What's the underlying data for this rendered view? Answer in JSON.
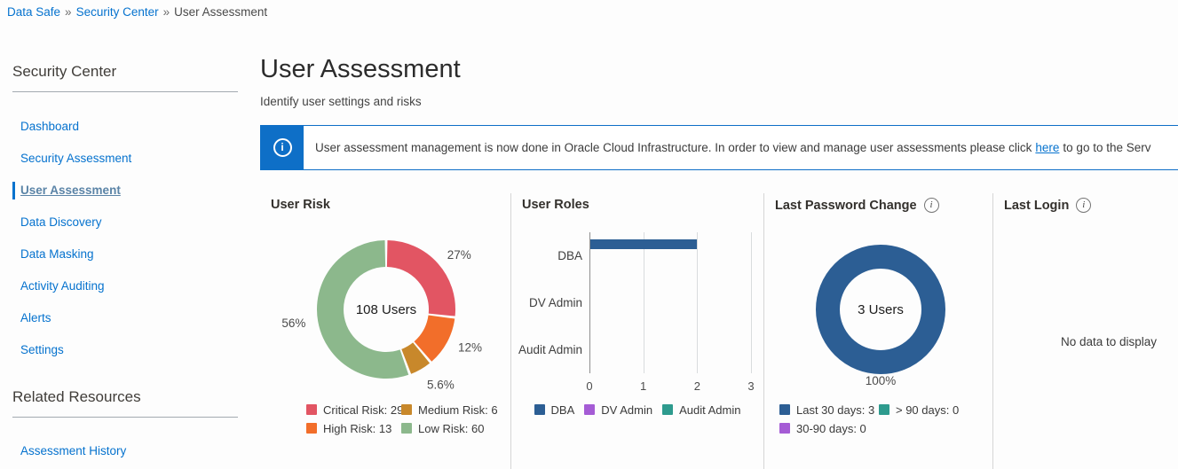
{
  "breadcrumb": {
    "separator": "»",
    "items": [
      {
        "label": "Data Safe",
        "is_link": true
      },
      {
        "label": "Security Center",
        "is_link": true
      },
      {
        "label": "User Assessment",
        "is_link": false
      }
    ]
  },
  "sidebar": {
    "section1_title": "Security Center",
    "items": [
      {
        "label": "Dashboard",
        "active": false
      },
      {
        "label": "Security Assessment",
        "active": false
      },
      {
        "label": "User Assessment",
        "active": true
      },
      {
        "label": "Data Discovery",
        "active": false
      },
      {
        "label": "Data Masking",
        "active": false
      },
      {
        "label": "Activity Auditing",
        "active": false
      },
      {
        "label": "Alerts",
        "active": false
      },
      {
        "label": "Settings",
        "active": false
      }
    ],
    "section2_title": "Related Resources",
    "related_items": [
      {
        "label": "Assessment History"
      }
    ]
  },
  "header": {
    "title": "User Assessment",
    "subtitle": "Identify user settings and risks"
  },
  "banner": {
    "icon": "info-icon",
    "text_before": "User assessment management is now done in Oracle Cloud Infrastructure. In order to view and manage user assessments please click",
    "link_label": "here",
    "text_after": "to go to the Serv"
  },
  "colors": {
    "link_blue": "#0572ce",
    "active_item_blue": "#5b84a7",
    "banner_blue": "#0e6fc7",
    "critical_red": "#e25563",
    "high_orange": "#f26e2a",
    "medium_ochre": "#c8882b",
    "low_green": "#8cb88c",
    "bar_blue": "#2c5e94",
    "purple": "#a55cd5",
    "teal": "#2e9b8e",
    "divider_gray": "#d6d6d6"
  },
  "chart_data": [
    {
      "type": "donut",
      "title": "User Risk",
      "center_label": "108 Users",
      "total_users": 108,
      "segments": [
        {
          "label": "Critical Risk",
          "value": 29,
          "pct_label": "27%",
          "color": "#e25563"
        },
        {
          "label": "High Risk",
          "value": 13,
          "pct_label": "12%",
          "color": "#f26e2a"
        },
        {
          "label": "Medium Risk",
          "value": 6,
          "pct_label": "5.6%",
          "color": "#c8882b"
        },
        {
          "label": "Low Risk",
          "value": 60,
          "pct_label": "56%",
          "color": "#8cb88c"
        }
      ],
      "legend": [
        {
          "label": "Critical Risk: 29",
          "color": "#e25563"
        },
        {
          "label": "Medium Risk: 6",
          "color": "#c8882b"
        },
        {
          "label": "High Risk: 13",
          "color": "#f26e2a"
        },
        {
          "label": "Low Risk: 60",
          "color": "#8cb88c"
        }
      ]
    },
    {
      "type": "bar",
      "title": "User Roles",
      "orientation": "horizontal",
      "categories": [
        "DBA",
        "DV Admin",
        "Audit Admin"
      ],
      "values": [
        2,
        0,
        0
      ],
      "xlim": [
        0,
        3
      ],
      "xticks": [
        0,
        1,
        2,
        3
      ],
      "bar_color": "#2c5e94",
      "legend": [
        {
          "label": "DBA",
          "color": "#2c5e94"
        },
        {
          "label": "DV Admin",
          "color": "#a55cd5"
        },
        {
          "label": "Audit Admin",
          "color": "#2e9b8e"
        }
      ]
    },
    {
      "type": "donut",
      "title": "Last Password Change",
      "has_info_icon": true,
      "center_label": "3 Users",
      "segments": [
        {
          "label": "Last 30 days",
          "value": 3,
          "pct_label": "100%",
          "color": "#2c5e94"
        }
      ],
      "legend": [
        {
          "label": "Last 30 days: 3",
          "color": "#2c5e94"
        },
        {
          "label": "> 90 days: 0",
          "color": "#2e9b8e"
        },
        {
          "label": "30-90 days: 0",
          "color": "#a55cd5"
        }
      ]
    },
    {
      "type": "empty",
      "title": "Last Login",
      "has_info_icon": true,
      "empty_text": "No data to display"
    }
  ]
}
